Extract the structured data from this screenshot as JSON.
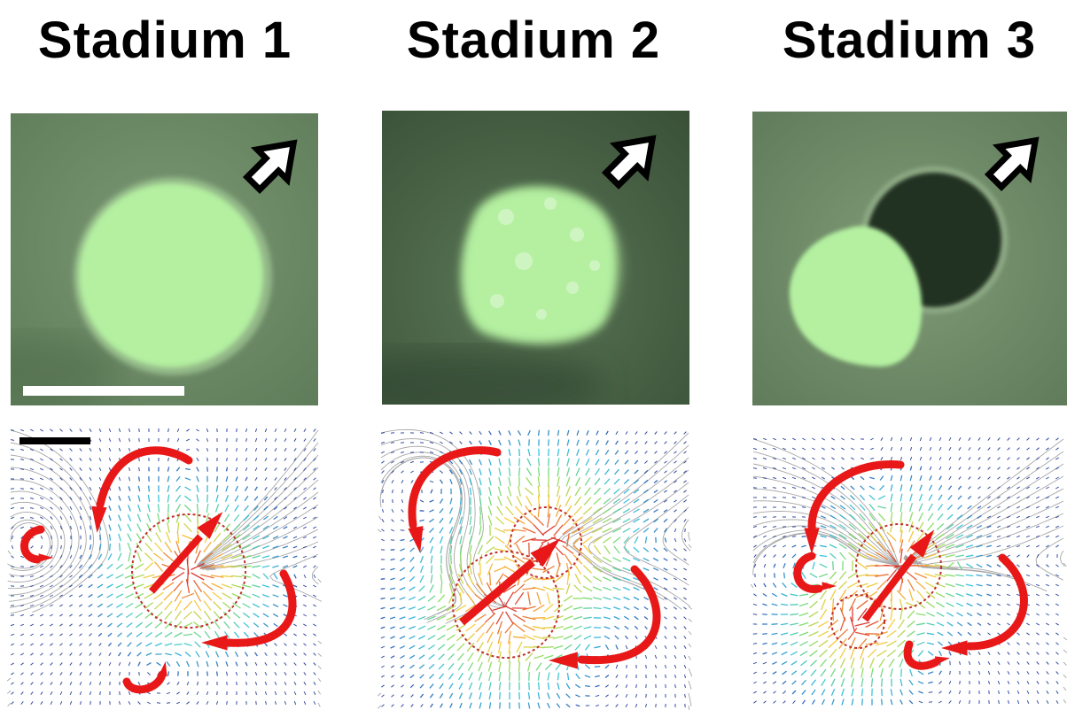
{
  "panels": [
    {
      "title": "Stadium 1"
    },
    {
      "title": "Stadium 2"
    },
    {
      "title": "Stadium 3"
    }
  ],
  "colors": {
    "background": "#ffffff",
    "photo_bg": "#6e8c68",
    "droplet": "#b4f0a0",
    "arrow_red": "#e81818",
    "vector_blue": "#1f3a9a",
    "streamline_gray": "#7a7a7a",
    "scale_bar_light": "#ffffff",
    "scale_bar_dark": "#000000"
  },
  "icons": [
    "direction-arrow-icon",
    "flow-arrow-icon",
    "rotation-arrow-icon"
  ]
}
